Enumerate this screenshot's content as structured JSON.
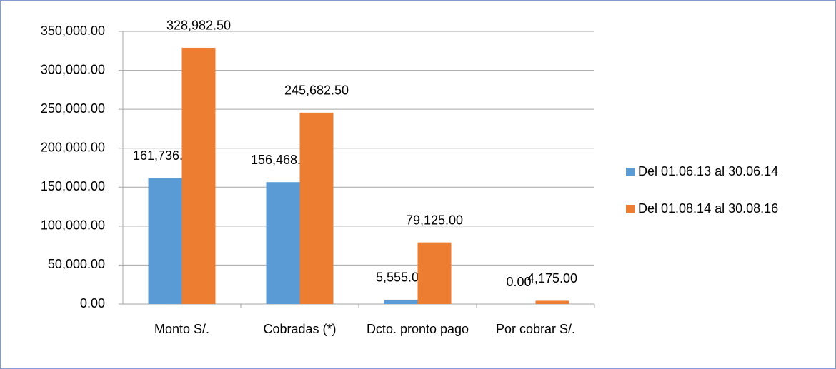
{
  "chart_data": {
    "type": "bar",
    "categories": [
      "Monto S/.",
      "Cobradas (*)",
      "Dcto. pronto pago",
      "Por cobrar S/."
    ],
    "series": [
      {
        "name": "Del 01.06.13 al 30.06.14",
        "color": "#5b9bd5",
        "values": [
          161736.0,
          156468.31,
          5555.0,
          0.0
        ],
        "value_labels": [
          "161,736.00",
          "156,468.31",
          "5,555.00",
          "0.00"
        ]
      },
      {
        "name": "Del 01.08.14 al 30.08.16",
        "color": "#ed7d31",
        "values": [
          328982.5,
          245682.5,
          79125.0,
          4175.0
        ],
        "value_labels": [
          "328,982.50",
          "245,682.50",
          "79,125.00",
          "4,175.00"
        ]
      }
    ],
    "ylim": [
      0,
      350000
    ],
    "yticks": [
      {
        "value": 0,
        "label": "0.00"
      },
      {
        "value": 50000,
        "label": "50,000.00"
      },
      {
        "value": 100000,
        "label": "100,000.00"
      },
      {
        "value": 150000,
        "label": "150,000.00"
      },
      {
        "value": 200000,
        "label": "200,000.00"
      },
      {
        "value": 250000,
        "label": "250,000.00"
      },
      {
        "value": 300000,
        "label": "300,000.00"
      },
      {
        "value": 350000,
        "label": "350,000.00"
      }
    ],
    "grid": true,
    "legend": "right"
  }
}
